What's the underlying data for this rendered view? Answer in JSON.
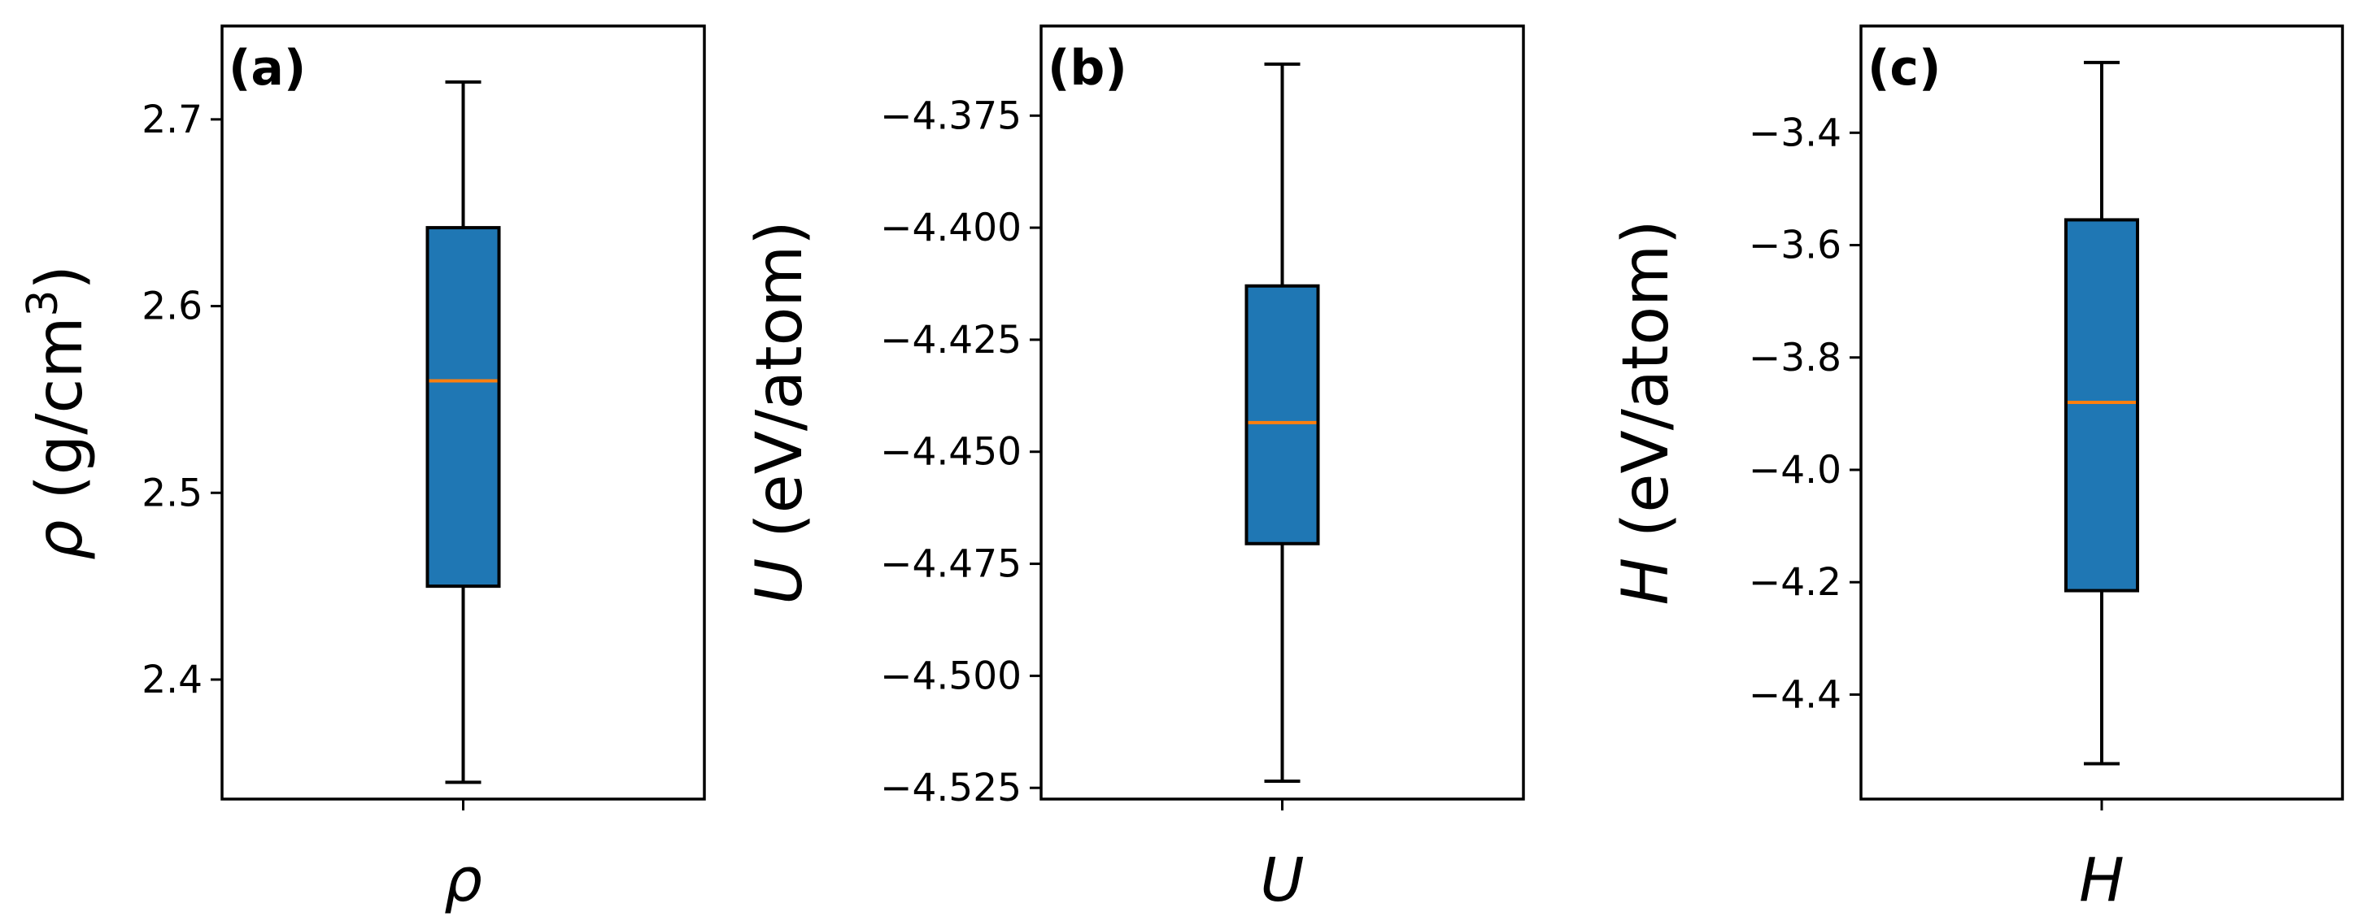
{
  "chart_data": [
    {
      "type": "box",
      "panel_label": "(a)",
      "ylabel_symbol": "ρ",
      "ylabel_unit_pre": " (g/cm",
      "ylabel_unit_sup": "3",
      "ylabel_unit_post": ")",
      "categories": [
        "ρ"
      ],
      "yticks": [
        2.4,
        2.5,
        2.6,
        2.7
      ],
      "ytick_labels": [
        "2.4",
        "2.5",
        "2.6",
        "2.7"
      ],
      "ylim": [
        2.336,
        2.75
      ],
      "box": {
        "whisker_low": 2.345,
        "q1": 2.45,
        "median": 2.56,
        "q3": 2.642,
        "whisker_high": 2.72
      }
    },
    {
      "type": "box",
      "panel_label": "(b)",
      "ylabel_symbol": "U",
      "ylabel_unit_pre": " (eV/atom)",
      "ylabel_unit_sup": "",
      "ylabel_unit_post": "",
      "categories": [
        "U"
      ],
      "yticks": [
        -4.525,
        -4.5,
        -4.475,
        -4.45,
        -4.425,
        -4.4,
        -4.375
      ],
      "ytick_labels": [
        "−4.525",
        "−4.500",
        "−4.475",
        "−4.450",
        "−4.425",
        "−4.400",
        "−4.375"
      ],
      "ylim": [
        -4.5275,
        -4.355
      ],
      "box": {
        "whisker_low": -4.5235,
        "q1": -4.4705,
        "median": -4.4435,
        "q3": -4.413,
        "whisker_high": -4.3635
      }
    },
    {
      "type": "box",
      "panel_label": "(c)",
      "ylabel_symbol": "H",
      "ylabel_unit_pre": " (eV/atom)",
      "ylabel_unit_sup": "",
      "ylabel_unit_post": "",
      "categories": [
        "H"
      ],
      "yticks": [
        -4.4,
        -4.2,
        -4.0,
        -3.8,
        -3.6,
        -3.4
      ],
      "ytick_labels": [
        "−4.4",
        "−4.2",
        "−4.0",
        "−3.8",
        "−3.6",
        "−3.4"
      ],
      "ylim": [
        -4.586,
        -3.21
      ],
      "box": {
        "whisker_low": -4.523,
        "q1": -4.215,
        "median": -3.88,
        "q3": -3.555,
        "whisker_high": -3.275
      }
    }
  ],
  "colors": {
    "box_fill": "#1f77b4",
    "median": "#ff7f0e",
    "axis": "#000000"
  }
}
